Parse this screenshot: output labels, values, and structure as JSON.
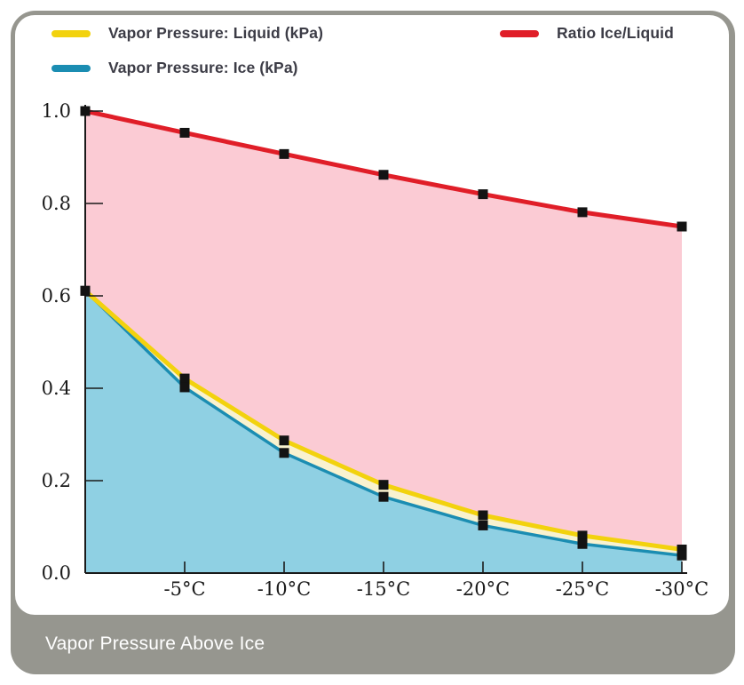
{
  "frame": {
    "background_color": "#96968F",
    "caption": "Vapor Pressure Above Ice",
    "caption_color": "#FFFFFF"
  },
  "legend": {
    "items": [
      {
        "key": "liquid",
        "label": "Vapor Pressure: Liquid (kPa)",
        "color": "#F2D20E"
      },
      {
        "key": "ice",
        "label": "Vapor Pressure: Ice (kPa)",
        "color": "#1B8DB2"
      },
      {
        "key": "ratio",
        "label": "Ratio Ice/Liquid",
        "color": "#E01E28"
      }
    ]
  },
  "chart_data": {
    "type": "line",
    "title": "Vapor Pressure Above Ice",
    "x": [
      0,
      -5,
      -10,
      -15,
      -20,
      -25,
      -30
    ],
    "x_tick_values": [
      -5,
      -10,
      -15,
      -20,
      -25,
      -30
    ],
    "x_tick_labels": [
      "-5°C",
      "-10°C",
      "-15°C",
      "-20°C",
      "-25°C",
      "-30°C"
    ],
    "y_ticks": [
      0.0,
      0.2,
      0.4,
      0.6,
      0.8,
      1.0
    ],
    "y_tick_labels": [
      "0.0",
      "0.2",
      "0.4",
      "0.6",
      "0.8",
      "1.0"
    ],
    "xlim": [
      0,
      -30
    ],
    "ylim": [
      0.0,
      1.0
    ],
    "grid": false,
    "legend_position": "top",
    "axis_color": "#1A1A1A",
    "marker": "square",
    "marker_color": "#131313",
    "series": [
      {
        "key": "ratio",
        "name": "Ratio Ice/Liquid",
        "color": "#E01E28",
        "line_width": 5,
        "values": [
          1.0,
          0.953,
          0.907,
          0.862,
          0.82,
          0.781,
          0.75
        ]
      },
      {
        "key": "liquid",
        "name": "Vapor Pressure: Liquid (kPa)",
        "color": "#F2D20E",
        "line_width": 5,
        "values": [
          0.611,
          0.421,
          0.287,
          0.191,
          0.125,
          0.081,
          0.051
        ]
      },
      {
        "key": "ice",
        "name": "Vapor Pressure: Ice (kPa)",
        "color": "#1B8DB2",
        "line_width": 3.5,
        "values": [
          0.611,
          0.402,
          0.26,
          0.165,
          0.103,
          0.063,
          0.038
        ]
      }
    ],
    "fills": [
      {
        "upper": "ratio",
        "lower": "liquid",
        "color": "#FBCBD4"
      },
      {
        "upper": "liquid",
        "lower": "ice",
        "color": "#F9F2CF"
      },
      {
        "upper": "ice",
        "lower": "baseline",
        "color": "#8FD0E3"
      }
    ]
  }
}
